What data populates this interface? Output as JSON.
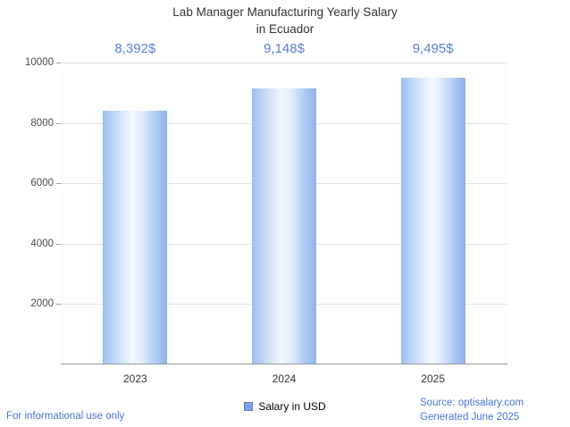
{
  "title": {
    "line1": "Lab Manager Manufacturing Yearly Salary",
    "line2": "in Ecuador"
  },
  "chart_data": {
    "type": "bar",
    "categories": [
      "2023",
      "2024",
      "2025"
    ],
    "values": [
      8392,
      9148,
      9495
    ],
    "value_labels": [
      "8,392$",
      "9,148$",
      "9,495$"
    ],
    "series_name": "Salary in USD",
    "title": "Lab Manager Manufacturing Yearly Salary in Ecuador",
    "xlabel": "",
    "ylabel": "",
    "ylim": [
      0,
      10000
    ],
    "yticks": [
      2000,
      4000,
      6000,
      8000,
      10000
    ],
    "grid": "horizontal",
    "legend_position": "bottom-center",
    "colors": {
      "bar_edge": "#8fb2ea",
      "bar_center": "#f3f8ff",
      "value_label_text": "#5b7fd6",
      "footer_text": "#4a74d4",
      "legend_swatch": "#7b9fe0"
    }
  },
  "legend": {
    "label": "Salary in USD"
  },
  "footer": {
    "left": "For informational use only",
    "source": "Source: optisalary.com",
    "generated": "Generated June 2025"
  }
}
